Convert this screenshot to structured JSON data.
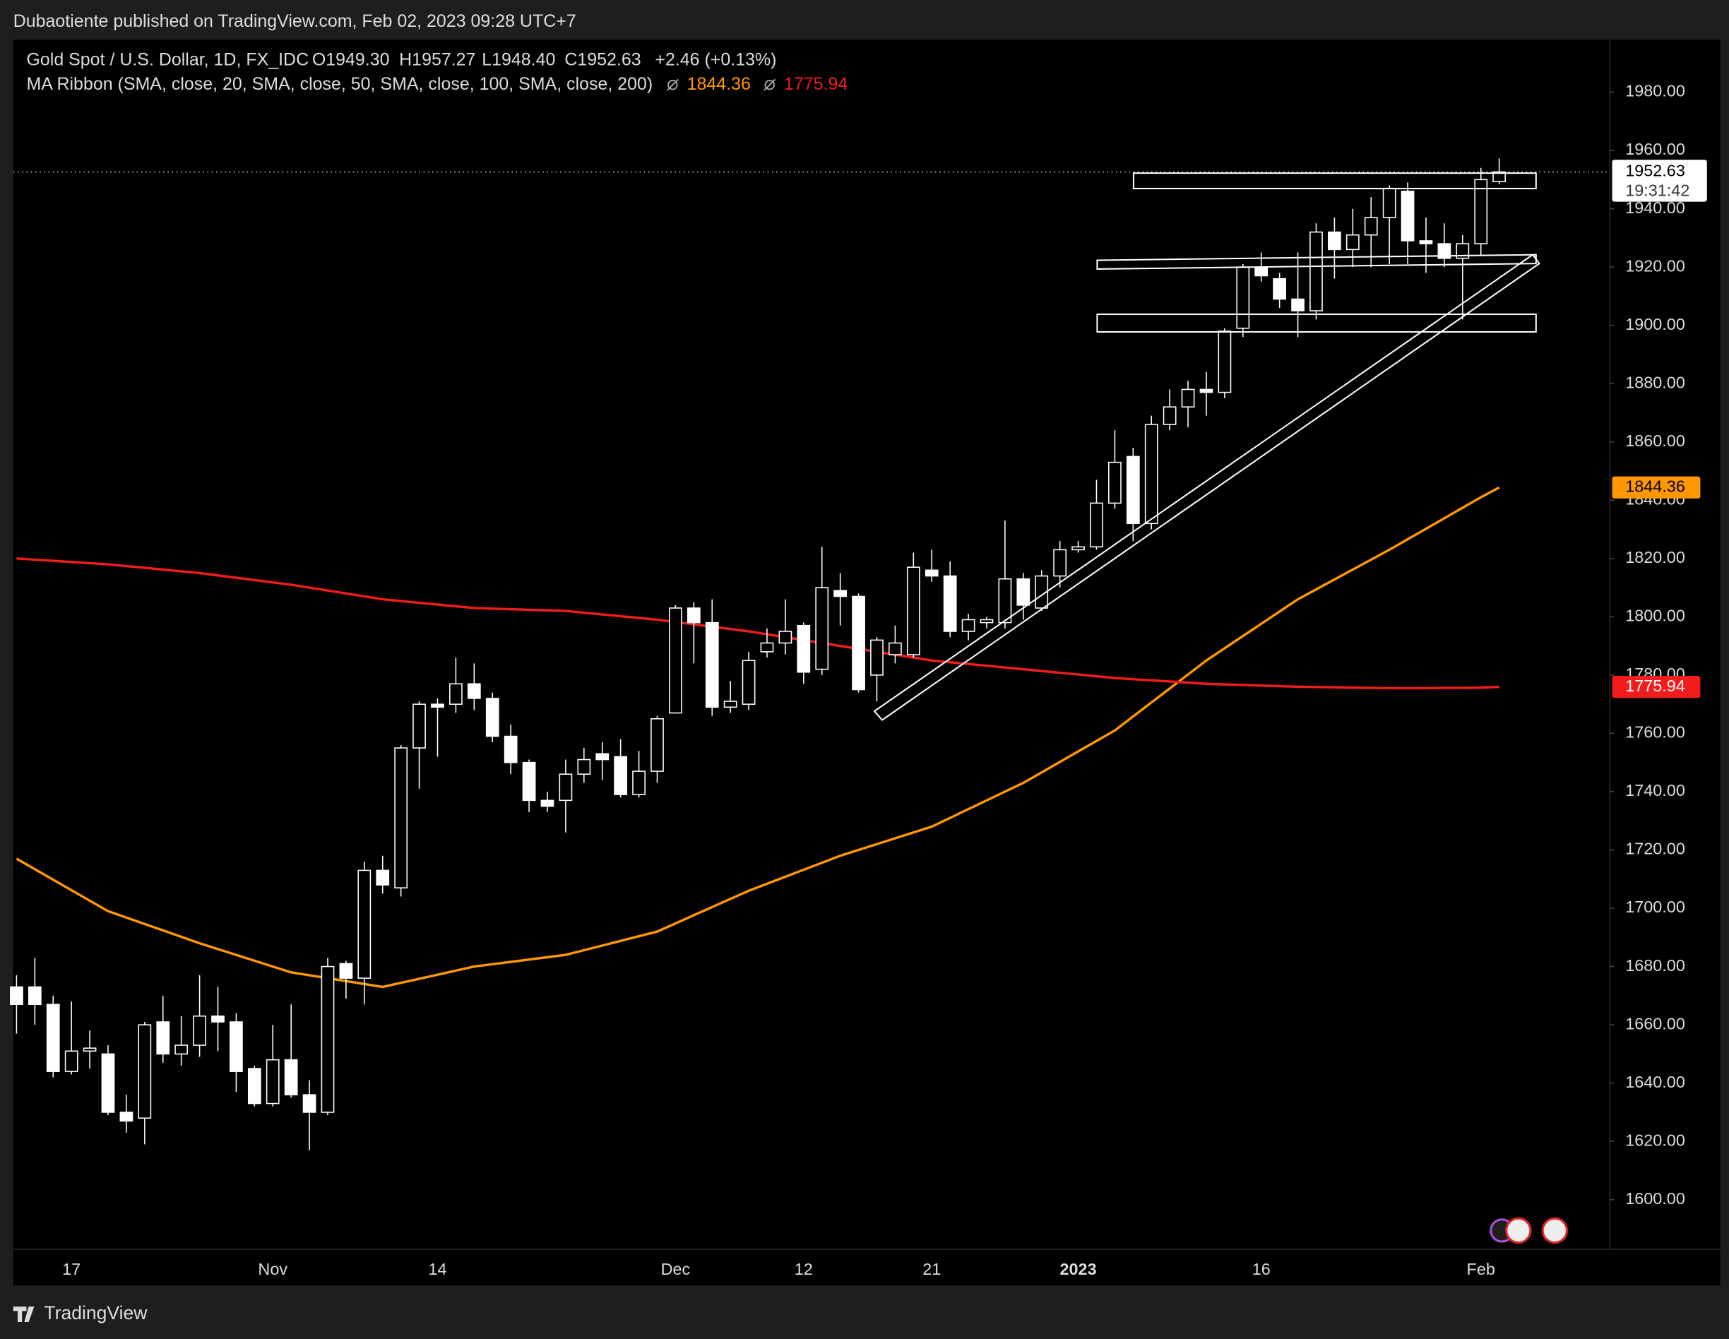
{
  "header": {
    "text": "Dubaotiente published on TradingView.com, Feb 02, 2023 09:28 UTC+7"
  },
  "footer": {
    "text": "TradingView"
  },
  "chart_data": {
    "type": "candlestick",
    "legend": {
      "symbol": "Gold Spot / U.S. Dollar, 1D, FX_IDC",
      "ohlc": [
        "O1949.30",
        "H1957.27",
        "L1948.40",
        "C1952.63"
      ],
      "change": "+2.46 (+0.13%)",
      "indicator": "MA Ribbon (SMA, close, 20, SMA, close, 50, SMA, close, 100, SMA, close, 200)"
    },
    "candle_color": "#ffffff",
    "categories": [
      null,
      null,
      null,
      "17",
      null,
      null,
      null,
      null,
      null,
      null,
      null,
      null,
      null,
      null,
      "Nov",
      null,
      null,
      null,
      null,
      null,
      null,
      null,
      null,
      "14",
      null,
      null,
      null,
      null,
      null,
      null,
      null,
      null,
      null,
      null,
      null,
      null,
      "Dec",
      null,
      null,
      null,
      null,
      null,
      null,
      "12",
      null,
      null,
      null,
      null,
      null,
      null,
      "21",
      null,
      null,
      null,
      null,
      null,
      null,
      null,
      "2023",
      null,
      null,
      null,
      null,
      null,
      null,
      null,
      null,
      null,
      "16",
      null,
      null,
      null,
      null,
      null,
      null,
      null,
      null,
      null,
      null,
      null,
      "Feb",
      null
    ],
    "open": [
      1673,
      1673,
      1667,
      1644,
      1651,
      1650,
      1630,
      1628,
      1661,
      1650,
      1653,
      1663,
      1661,
      1645,
      1633,
      1648,
      1636,
      1630,
      1681,
      1676,
      1713,
      1707,
      1755,
      1770,
      1770,
      1777,
      1772,
      1759,
      1750,
      1737,
      1737,
      1746,
      1753,
      1752,
      1739,
      1747,
      1767,
      1803,
      1798,
      1769,
      1770,
      1788,
      1791,
      1797,
      1782,
      1809,
      1807,
      1780,
      1787,
      1787,
      1816,
      1814,
      1795,
      1798,
      1798,
      1813,
      1803,
      1814,
      1823,
      1824,
      1839,
      1855,
      1832,
      1866,
      1872,
      1878,
      1877,
      1899,
      1920,
      1916,
      1909,
      1905,
      1932,
      1926,
      1931,
      1937,
      1946,
      1929,
      1928,
      1923,
      1928,
      1949.3
    ],
    "high": [
      1677,
      1683,
      1670,
      1668,
      1658,
      1653,
      1636,
      1661,
      1670,
      1663,
      1677,
      1673,
      1664,
      1646,
      1660,
      1667,
      1641,
      1683,
      1682,
      1716,
      1718,
      1756,
      1771,
      1772,
      1786,
      1784,
      1774,
      1763,
      1751,
      1740,
      1751,
      1755,
      1757,
      1758,
      1754,
      1766,
      1804,
      1805,
      1806,
      1778,
      1788,
      1796,
      1806,
      1798,
      1824,
      1815,
      1808,
      1793,
      1797,
      1822,
      1823,
      1819,
      1801,
      1800,
      1833,
      1815,
      1816,
      1826,
      1826,
      1847,
      1864,
      1858,
      1869,
      1878,
      1881,
      1884,
      1899,
      1921,
      1925,
      1918,
      1925,
      1935,
      1937,
      1940,
      1944,
      1948,
      1949,
      1937,
      1935,
      1931,
      1954,
      1957.27
    ],
    "low": [
      1657,
      1660,
      1642,
      1643,
      1645,
      1629,
      1623,
      1619,
      1647,
      1646,
      1649,
      1651,
      1637,
      1632,
      1632,
      1635,
      1617,
      1629,
      1669,
      1667,
      1705,
      1704,
      1741,
      1752,
      1767,
      1768,
      1757,
      1746,
      1733,
      1733,
      1726,
      1743,
      1744,
      1738,
      1738,
      1743,
      1767,
      1784,
      1766,
      1767,
      1768,
      1786,
      1787,
      1777,
      1780,
      1797,
      1774,
      1771,
      1784,
      1786,
      1812,
      1793,
      1792,
      1796,
      1796,
      1799,
      1802,
      1810,
      1822,
      1823,
      1837,
      1826,
      1830,
      1864,
      1865,
      1869,
      1875,
      1896,
      1915,
      1906,
      1896,
      1902,
      1916,
      1920,
      1920,
      1921,
      1921,
      1918,
      1920,
      1902,
      1924,
      1948.4
    ],
    "close": [
      1667,
      1667,
      1644,
      1651,
      1652,
      1630,
      1627,
      1660,
      1650,
      1653,
      1663,
      1661,
      1644,
      1633,
      1648,
      1636,
      1630,
      1680,
      1676,
      1713,
      1708,
      1755,
      1770,
      1769,
      1777,
      1772,
      1759,
      1750,
      1737,
      1735,
      1746,
      1751,
      1751,
      1739,
      1747,
      1765,
      1803,
      1798,
      1769,
      1771,
      1785,
      1791,
      1795,
      1781,
      1810,
      1807,
      1775,
      1792,
      1791,
      1817,
      1814,
      1795,
      1799,
      1799,
      1813,
      1804,
      1814,
      1823,
      1824,
      1839,
      1853,
      1832,
      1866,
      1872,
      1878,
      1877,
      1898,
      1920,
      1917,
      1909,
      1905,
      1932,
      1926,
      1931,
      1937,
      1947,
      1929,
      1928,
      1923,
      1928,
      1950,
      1952.63
    ],
    "close_label": "1952.63",
    "countdown": "19:31:42",
    "series": [
      {
        "color": "#ff9800",
        "last_label": "1844.36",
        "values": [
          1717,
          1713.4,
          1709.8,
          1706.2,
          1702.6,
          1699,
          1696.8,
          1694.6,
          1692.4,
          1690.2,
          1688,
          1686,
          1684,
          1682,
          1680,
          1678,
          1677,
          1676,
          1675,
          1674,
          1673,
          1674.4,
          1675.8,
          1677.2,
          1678.6,
          1680,
          1680.8,
          1681.6,
          1682.4,
          1683.2,
          1684,
          1685.6,
          1687.2,
          1688.8,
          1690.4,
          1692,
          1694.8,
          1697.6,
          1700.4,
          1703.2,
          1706,
          1708.4,
          1710.8,
          1713.2,
          1715.6,
          1718,
          1720,
          1722,
          1724,
          1726,
          1728,
          1731,
          1734,
          1737,
          1740,
          1743,
          1746.6,
          1750.2,
          1753.8,
          1757.4,
          1761,
          1765.8,
          1770.6,
          1775.4,
          1780.2,
          1785,
          1789.2,
          1793.4,
          1797.6,
          1801.8,
          1806,
          1809.4,
          1812.8,
          1816.2,
          1819.6,
          1823,
          1826.6,
          1830.2,
          1833.8,
          1837.4,
          1841,
          1844.36
        ]
      },
      {
        "color": "#f21c1c",
        "last_label": "1775.94",
        "values": [
          1820,
          1819.6,
          1819.2,
          1818.8,
          1818.4,
          1818,
          1817.4,
          1816.8,
          1816.2,
          1815.6,
          1815,
          1814.2,
          1813.4,
          1812.6,
          1811.8,
          1811,
          1810,
          1809,
          1808,
          1807,
          1806,
          1805.4,
          1804.8,
          1804.2,
          1803.6,
          1803,
          1802.8,
          1802.6,
          1802.4,
          1802.2,
          1802,
          1801.4,
          1800.8,
          1800.2,
          1799.6,
          1799,
          1798.2,
          1797.4,
          1796.6,
          1795.8,
          1795,
          1794,
          1793,
          1792,
          1791,
          1790,
          1789,
          1788,
          1787,
          1786,
          1785,
          1784.4,
          1783.8,
          1783.2,
          1782.6,
          1782,
          1781.4,
          1780.8,
          1780.2,
          1779.6,
          1779,
          1778.6,
          1778.2,
          1777.8,
          1777.4,
          1777,
          1776.8,
          1776.6,
          1776.4,
          1776.2,
          1776,
          1775.9,
          1775.8,
          1775.7,
          1775.6,
          1775.5,
          1775.5,
          1775.5,
          1775.6,
          1775.6,
          1775.7,
          1775.94
        ]
      }
    ],
    "ylim": [
      1583,
      1998
    ],
    "yticks": [
      {
        "value": 1600,
        "label": "1600.00"
      },
      {
        "value": 1620,
        "label": "1620.00"
      },
      {
        "value": 1640,
        "label": "1640.00"
      },
      {
        "value": 1660,
        "label": "1660.00"
      },
      {
        "value": 1680,
        "label": "1680.00"
      },
      {
        "value": 1700,
        "label": "1700.00"
      },
      {
        "value": 1720,
        "label": "1720.00"
      },
      {
        "value": 1740,
        "label": "1740.00"
      },
      {
        "value": 1760,
        "label": "1760.00"
      },
      {
        "value": 1780,
        "label": "1780.00"
      },
      {
        "value": 1800,
        "label": "1800.00"
      },
      {
        "value": 1820,
        "label": "1820.00"
      },
      {
        "value": 1840,
        "label": "1840.00"
      },
      {
        "value": 1860,
        "label": "1860.00"
      },
      {
        "value": 1880,
        "label": "1880.00"
      },
      {
        "value": 1900,
        "label": "1900.00"
      },
      {
        "value": 1920,
        "label": "1920.00"
      },
      {
        "value": 1940,
        "label": "1940.00"
      },
      {
        "value": 1960,
        "label": "1960.00"
      },
      {
        "value": 1980,
        "label": "1980.00"
      }
    ],
    "grid": false
  }
}
